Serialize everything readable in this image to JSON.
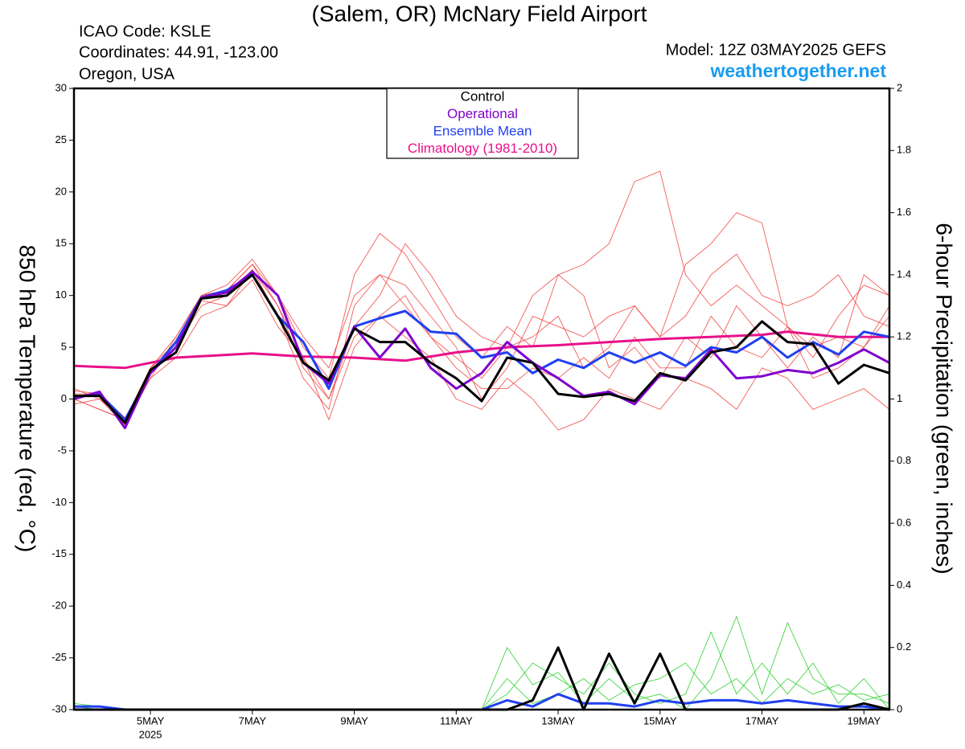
{
  "chart_data": {
    "type": "line",
    "title": "(Salem, OR) McNary Field Airport",
    "info": [
      "ICAO Code: KSLE",
      "Coordinates: 44.91, -123.00",
      "Oregon, USA"
    ],
    "model": "Model: 12Z 03MAY2025 GEFS",
    "website": "weathertogether.net",
    "year_label": "2025",
    "ylabel": "850 hPa Temperature (red, °C)",
    "y2label": "6-hour Precipitation (green, inches)",
    "x": [
      3.5,
      4,
      4.5,
      5,
      5.5,
      6,
      6.5,
      7,
      7.5,
      8,
      8.5,
      9,
      9.5,
      10,
      10.5,
      11,
      11.5,
      12,
      12.5,
      13,
      13.5,
      14,
      14.5,
      15,
      15.5,
      16,
      16.5,
      17,
      17.5,
      18,
      18.5,
      19,
      19.5
    ],
    "xlim": [
      3.5,
      19.5
    ],
    "xticks": [
      {
        "value": 5,
        "label": "5MAY"
      },
      {
        "value": 7,
        "label": "7MAY"
      },
      {
        "value": 9,
        "label": "9MAY"
      },
      {
        "value": 11,
        "label": "11MAY"
      },
      {
        "value": 13,
        "label": "13MAY"
      },
      {
        "value": 15,
        "label": "15MAY"
      },
      {
        "value": 17,
        "label": "17MAY"
      },
      {
        "value": 19,
        "label": "19MAY"
      }
    ],
    "ylim": [
      -30,
      30
    ],
    "yticks": [
      -30,
      -25,
      -20,
      -15,
      -10,
      -5,
      0,
      5,
      10,
      15,
      20,
      25,
      30
    ],
    "y2lim": [
      0,
      2
    ],
    "y2ticks": [
      0,
      0.2,
      0.4,
      0.6,
      0.8,
      1,
      1.2,
      1.4,
      1.6,
      1.8,
      2
    ],
    "member_color": "#f0403c",
    "precip_color": "#30d030",
    "members": [
      {
        "values": [
          0,
          -1,
          -2,
          3,
          6,
          10,
          10.5,
          13,
          9,
          3,
          0,
          7,
          10,
          15,
          12,
          8,
          6,
          5,
          10,
          12,
          13,
          15,
          21,
          22,
          12,
          9,
          11,
          9,
          7,
          5,
          6,
          5,
          8
        ],
        "precip": [
          0.02,
          0.01,
          0,
          0,
          0,
          0,
          0,
          0,
          0,
          0,
          0,
          0,
          0,
          0,
          0,
          0,
          0,
          0.2,
          0.08,
          0.12,
          0.02,
          0.1,
          0.03,
          0.05,
          0,
          0.1,
          0.3,
          0.05,
          0.28,
          0.1,
          0.05,
          0.05,
          0.02
        ]
      },
      {
        "values": [
          1,
          0,
          -2,
          3,
          5,
          9,
          10,
          12.5,
          8,
          2,
          -1,
          9,
          12,
          9,
          6,
          4,
          2,
          5,
          6,
          8,
          3,
          5,
          9,
          6,
          13,
          15,
          18,
          17,
          7,
          4,
          8,
          11,
          10
        ],
        "precip": [
          0.01,
          0,
          0,
          0,
          0,
          0,
          0,
          0,
          0,
          0,
          0,
          0,
          0,
          0,
          0,
          0,
          0,
          0.05,
          0.15,
          0.1,
          0.05,
          0.15,
          0.05,
          0.02,
          0.05,
          0.25,
          0.05,
          0.15,
          0.05,
          0.15,
          0.02,
          0.1,
          0
        ]
      },
      {
        "values": [
          -0.5,
          0,
          -2.5,
          2,
          4,
          8,
          9,
          11.5,
          7,
          4,
          -2,
          5,
          8,
          6,
          4,
          0,
          -1,
          2,
          0,
          -3,
          -2,
          1,
          0,
          -1,
          2,
          1,
          -1,
          3,
          2,
          -1,
          0,
          1,
          -1
        ],
        "precip": [
          0,
          0,
          0,
          0,
          0,
          0,
          0,
          0,
          0,
          0,
          0,
          0,
          0,
          0,
          0,
          0,
          0,
          0.1,
          0.02,
          0.05,
          0.1,
          0.03,
          0.08,
          0.1,
          0.15,
          0.05,
          0.1,
          0.02,
          0.1,
          0.05,
          0.08,
          0.03,
          0.05
        ]
      },
      {
        "values": [
          0.5,
          0.5,
          -1.8,
          2,
          6,
          10,
          10.5,
          13,
          10,
          5,
          2,
          12,
          16,
          14,
          10,
          6,
          4,
          7,
          5,
          12,
          10,
          3,
          5,
          2,
          6,
          4,
          9,
          6,
          3,
          6,
          4,
          12,
          10
        ]
      },
      {
        "values": [
          0,
          -1,
          -2,
          2.5,
          5,
          9.5,
          9,
          12.5,
          9,
          4,
          0,
          6,
          8,
          10,
          6,
          3,
          1,
          1,
          3,
          2,
          4,
          2,
          6,
          3,
          3,
          8,
          5,
          4,
          7,
          2,
          3,
          5,
          9
        ]
      },
      {
        "values": [
          0.8,
          0.5,
          -2,
          3,
          5.5,
          10,
          11,
          13.5,
          10,
          6,
          3,
          10,
          12,
          11,
          8,
          5,
          0,
          3,
          8,
          7,
          6,
          8,
          9,
          6,
          8,
          12,
          14,
          10,
          9,
          10,
          12,
          8,
          7
        ]
      }
    ],
    "series": [
      {
        "name": "Control",
        "color": "#000000",
        "values": [
          0.3,
          0.3,
          -2.3,
          2.8,
          4.5,
          9.7,
          10,
          12,
          8,
          3.5,
          1.8,
          6.8,
          5.5,
          5.5,
          3.5,
          2,
          -0.2,
          4,
          3.5,
          0.5,
          0.2,
          0.5,
          -0.2,
          2.5,
          1.8,
          4.5,
          5,
          7.5,
          5.5,
          5.3,
          1.5,
          3.3,
          2.5
        ],
        "precip": [
          0,
          0,
          0,
          0,
          0,
          0,
          0,
          0,
          0,
          0,
          0,
          0,
          0,
          0,
          0,
          0,
          0,
          0,
          0.03,
          0.2,
          0,
          0.18,
          0.02,
          0.18,
          0,
          0,
          0,
          0,
          0,
          0,
          0,
          0.02,
          0
        ]
      },
      {
        "name": "Operational",
        "color": "#8000d0",
        "values": [
          0,
          0.7,
          -2.8,
          2.5,
          5,
          9.8,
          10.3,
          12.3,
          10,
          3.5,
          1.5,
          7,
          4,
          6.8,
          3,
          1,
          2.5,
          5.5,
          3.5,
          2,
          0.3,
          0.7,
          -0.5,
          2.3,
          2,
          4.8,
          2,
          2.2,
          2.8,
          2.5,
          3.5,
          4.8,
          3.5
        ]
      },
      {
        "name": "Ensemble Mean",
        "color": "#2040f0",
        "values": [
          0.2,
          0.5,
          -2,
          2.5,
          5.5,
          9.8,
          10.5,
          12,
          8,
          5.5,
          1,
          7,
          7.8,
          8.5,
          6.5,
          6.3,
          4,
          4.5,
          2.5,
          3.8,
          3,
          4.5,
          3.5,
          4.5,
          3.2,
          5,
          4.5,
          6,
          4,
          5.5,
          4.3,
          6.5,
          6
        ],
        "precip": [
          0.01,
          0.01,
          0,
          0,
          0,
          0,
          0,
          0,
          0,
          0,
          0,
          0,
          0,
          0,
          0,
          0,
          0,
          0.03,
          0.01,
          0.05,
          0.02,
          0.02,
          0.01,
          0.03,
          0.02,
          0.03,
          0.03,
          0.02,
          0.03,
          0.02,
          0.01,
          0.01,
          0
        ]
      },
      {
        "name": "Climatology (1981-2010)",
        "color": "#e8108a",
        "x": [
          3.5,
          4.5,
          5.5,
          7,
          8,
          9,
          10,
          11,
          12,
          13,
          14,
          15,
          16,
          17,
          17.5,
          18.5,
          19.5
        ],
        "values": [
          3.2,
          3.0,
          4.0,
          4.4,
          4.1,
          4.0,
          3.7,
          4.5,
          5.0,
          5.2,
          5.5,
          5.8,
          6.0,
          6.2,
          6.5,
          6.0,
          6.0
        ]
      }
    ]
  }
}
